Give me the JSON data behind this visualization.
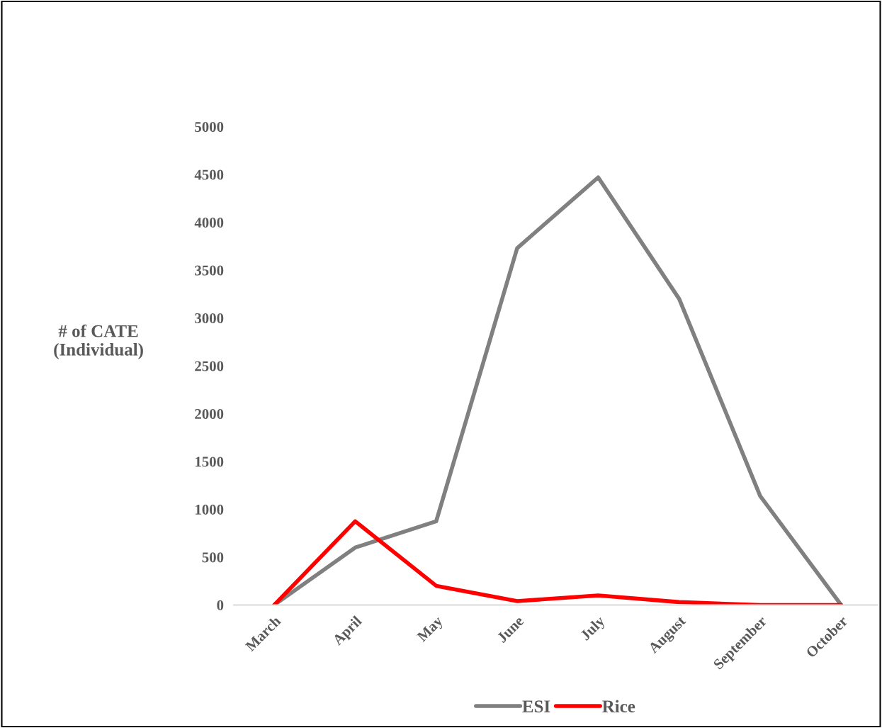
{
  "chart_data": {
    "type": "line",
    "ylabel": "# of CATE\n(Individual)",
    "categories": [
      "March",
      "April",
      "May",
      "June",
      "July",
      "August",
      "September",
      "October"
    ],
    "series": [
      {
        "name": "ESI",
        "color": "#808080",
        "values": [
          0,
          600,
          875,
          3730,
          4470,
          3200,
          1140,
          0
        ]
      },
      {
        "name": "Rice",
        "color": "#ff0000",
        "values": [
          0,
          875,
          200,
          40,
          100,
          30,
          0,
          0
        ]
      }
    ],
    "ylim": [
      0,
      5000
    ],
    "yticks": [
      0,
      500,
      1000,
      1500,
      2000,
      2500,
      3000,
      3500,
      4000,
      4500,
      5000
    ],
    "grid": false,
    "legend": "bottom",
    "marker": "none",
    "line_style": "solid"
  }
}
